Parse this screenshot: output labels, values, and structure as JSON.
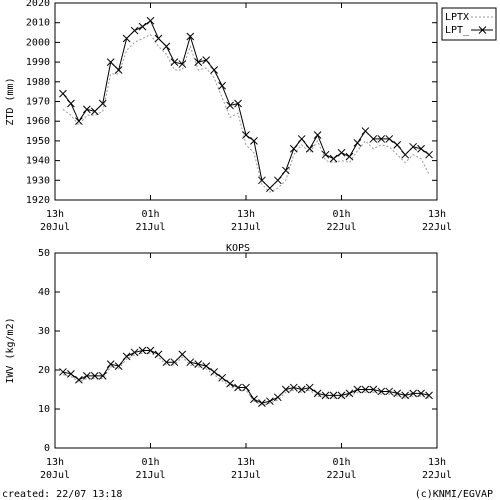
{
  "chart_data": [
    {
      "type": "line",
      "ylabel": "ZTD (mm)",
      "x": [
        1,
        2,
        3,
        4,
        5,
        6,
        7,
        8,
        9,
        10,
        11,
        12,
        13,
        14,
        15,
        16,
        17,
        18,
        19,
        20,
        21,
        22,
        23,
        24,
        25,
        26,
        27,
        28,
        29,
        30,
        31,
        32,
        33,
        34,
        35,
        36,
        37,
        38,
        39,
        40,
        41,
        42,
        43,
        44,
        45,
        46,
        47
      ],
      "series": [
        {
          "name": "LPTX",
          "color": "#999999",
          "line_style": "dotted",
          "marker": "none",
          "values": [
            1966,
            1963,
            1958,
            1963,
            1963,
            1965,
            1984,
            1984,
            1996,
            2000,
            2002,
            2004,
            1998,
            1994,
            1986,
            1986,
            1998,
            1986,
            1987,
            1982,
            1972,
            1962,
            1964,
            1948,
            1944,
            1928,
            1924,
            1926,
            1930,
            1943,
            1948,
            1944,
            1950,
            1940,
            1939,
            1940,
            1939,
            1945,
            1950,
            1946,
            1948,
            1947,
            1943,
            1939,
            1943,
            1941,
            1933
          ]
        },
        {
          "name": "LPT_",
          "color": "#000000",
          "line_style": "solid",
          "marker": "x",
          "values": [
            1974,
            1969,
            1960,
            1966,
            1965,
            1969,
            1990,
            1986,
            2002,
            2006,
            2008,
            2011,
            2002,
            1998,
            1990,
            1989,
            2003,
            1990,
            1991,
            1986,
            1978,
            1968,
            1969,
            1953,
            1950,
            1930,
            1926,
            1930,
            1935,
            1946,
            1951,
            1946,
            1953,
            1943,
            1941,
            1944,
            1942,
            1949,
            1955,
            1951,
            1951,
            1951,
            1948,
            1943,
            1947,
            1946,
            1943
          ]
        }
      ],
      "xlim": [
        0,
        48
      ],
      "xticks": [
        {
          "value": 0,
          "label": "13h",
          "date": "20Jul"
        },
        {
          "value": 12,
          "label": "01h",
          "date": "21Jul"
        },
        {
          "value": 24,
          "label": "13h",
          "date": "21Jul"
        },
        {
          "value": 36,
          "label": "01h",
          "date": "22Jul"
        },
        {
          "value": 48,
          "label": "13h",
          "date": "22Jul"
        }
      ],
      "ylim": [
        1920,
        2020
      ],
      "yticks": [
        1920,
        1930,
        1940,
        1950,
        1960,
        1970,
        1980,
        1990,
        2000,
        2010,
        2020
      ],
      "legend": "outside-top-right"
    },
    {
      "type": "line",
      "title": "KOPS",
      "ylabel": "IWV (kg/m2)",
      "x": [
        1,
        2,
        3,
        4,
        5,
        6,
        7,
        8,
        9,
        10,
        11,
        12,
        13,
        14,
        15,
        16,
        17,
        18,
        19,
        20,
        21,
        22,
        23,
        24,
        25,
        26,
        27,
        28,
        29,
        30,
        31,
        32,
        33,
        34,
        35,
        36,
        37,
        38,
        39,
        40,
        41,
        42,
        43,
        44,
        45,
        46,
        47
      ],
      "series": [
        {
          "color": "#999999",
          "line_style": "dotted",
          "marker": "none",
          "values": [
            18.8,
            18.3,
            17,
            17.8,
            17.8,
            17.8,
            20.8,
            20.3,
            22.8,
            23.8,
            24.3,
            24.3,
            23.3,
            21.3,
            21.3,
            23.3,
            21.3,
            20.8,
            20.3,
            18.8,
            17.3,
            15.8,
            14.8,
            14.8,
            12,
            11,
            11.5,
            12.3,
            14.3,
            14.8,
            14.3,
            14.8,
            13.3,
            12.8,
            12.8,
            12.8,
            13.3,
            14.3,
            14.3,
            14.3,
            13.8,
            13.8,
            13.3,
            12.8,
            13.3,
            13.3,
            12.8
          ]
        },
        {
          "color": "#000000",
          "line_style": "solid",
          "marker": "x",
          "values": [
            19.5,
            19,
            17.5,
            18.5,
            18.5,
            18.5,
            21.5,
            21,
            23.5,
            24.5,
            25,
            25,
            24,
            22,
            22,
            24,
            22,
            21.5,
            21,
            19.5,
            18,
            16.5,
            15.5,
            15.5,
            12.5,
            11.5,
            12,
            13,
            15,
            15.5,
            15,
            15.5,
            14,
            13.5,
            13.5,
            13.5,
            14,
            15,
            15,
            15,
            14.5,
            14.5,
            14,
            13.5,
            14,
            14,
            13.5
          ]
        }
      ],
      "xlim": [
        0,
        48
      ],
      "xticks": [
        {
          "value": 0,
          "label": "13h",
          "date": "20Jul"
        },
        {
          "value": 12,
          "label": "01h",
          "date": "21Jul"
        },
        {
          "value": 24,
          "label": "13h",
          "date": "21Jul"
        },
        {
          "value": 36,
          "label": "01h",
          "date": "22Jul"
        },
        {
          "value": 48,
          "label": "13h",
          "date": "22Jul"
        }
      ],
      "ylim": [
        0,
        50
      ],
      "yticks": [
        0,
        10,
        20,
        30,
        40,
        50
      ]
    }
  ],
  "footer": {
    "created": "created: 22/07 13:18",
    "credit": "(c)KNMI/EGVAP"
  }
}
